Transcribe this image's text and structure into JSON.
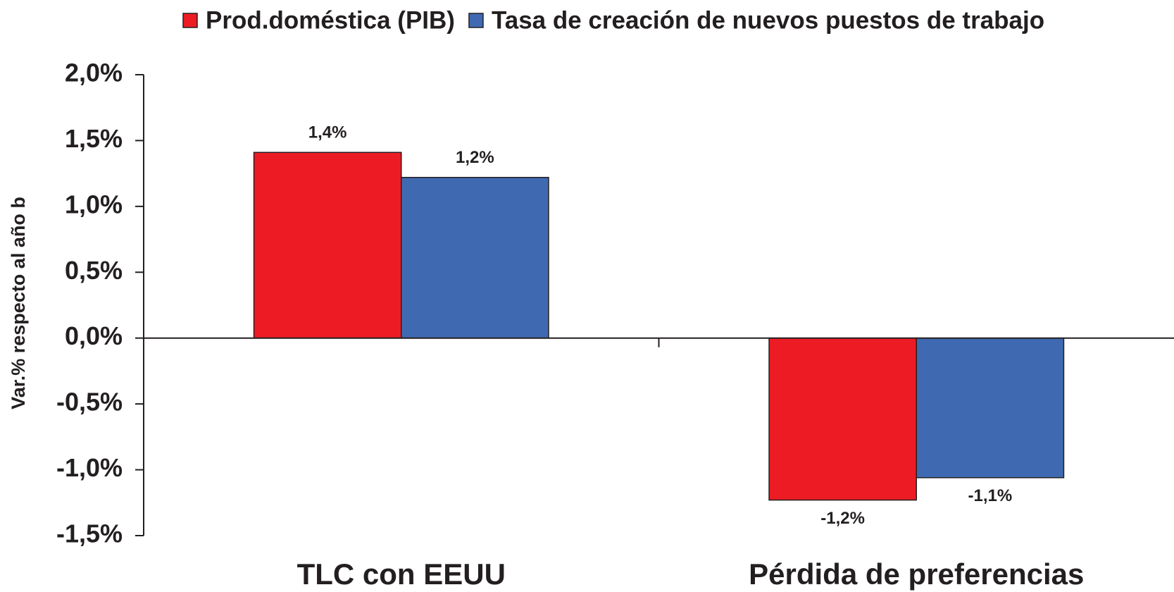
{
  "chart_data": {
    "type": "bar",
    "y_axis_label": "Var.% respecto al año b",
    "categories": [
      "TLC con EEUU",
      "Pérdida de preferencias"
    ],
    "series": [
      {
        "name": "Prod.doméstica (PIB)",
        "color": "#ed1c24",
        "values": [
          1.41,
          -1.23
        ],
        "value_labels": [
          "1,4%",
          "-1,2%"
        ]
      },
      {
        "name": "Tasa de creación de nuevos puestos de trabajo",
        "color": "#3f6ab2",
        "values": [
          1.22,
          -1.06
        ],
        "value_labels": [
          "1,2%",
          "-1,1%"
        ]
      }
    ],
    "ylim": [
      -1.5,
      2.0
    ],
    "yticks": [
      {
        "value": 2.0,
        "label": "2,0%"
      },
      {
        "value": 1.5,
        "label": "1,5%"
      },
      {
        "value": 1.0,
        "label": "1,0%"
      },
      {
        "value": 0.5,
        "label": "0,5%"
      },
      {
        "value": 0.0,
        "label": "0,0%"
      },
      {
        "value": -0.5,
        "label": "-0,5%"
      },
      {
        "value": -1.0,
        "label": "-1,0%"
      },
      {
        "value": -1.5,
        "label": "-1,5%"
      }
    ],
    "legend": "top"
  }
}
